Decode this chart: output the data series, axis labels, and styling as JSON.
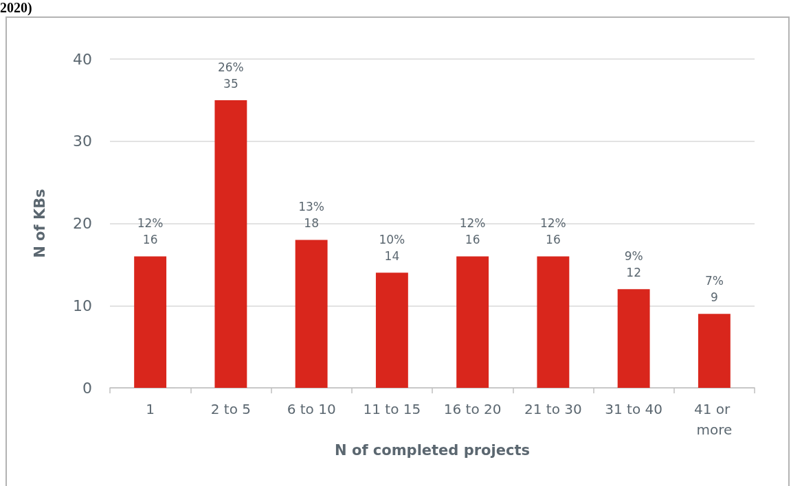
{
  "chart_data": {
    "type": "bar",
    "title": "2020)",
    "categories": [
      "1",
      "2 to 5",
      "6 to 10",
      "11 to 15",
      "16 to 20",
      "21 to 30",
      "31 to 40",
      "41 or more"
    ],
    "values": [
      16,
      35,
      18,
      14,
      16,
      16,
      12,
      9
    ],
    "value_labels": [
      "12%\n16",
      "26%\n35",
      "13%\n18",
      "10%\n14",
      "12%\n16",
      "12%\n16",
      "9%\n12",
      "7%\n9"
    ],
    "color": "#d9261c",
    "xlabel": "N of completed projects",
    "ylabel": "N of KBs",
    "ylim": [
      0,
      40
    ],
    "yticks": [
      0,
      10,
      20,
      30,
      40
    ],
    "grid": "y"
  }
}
